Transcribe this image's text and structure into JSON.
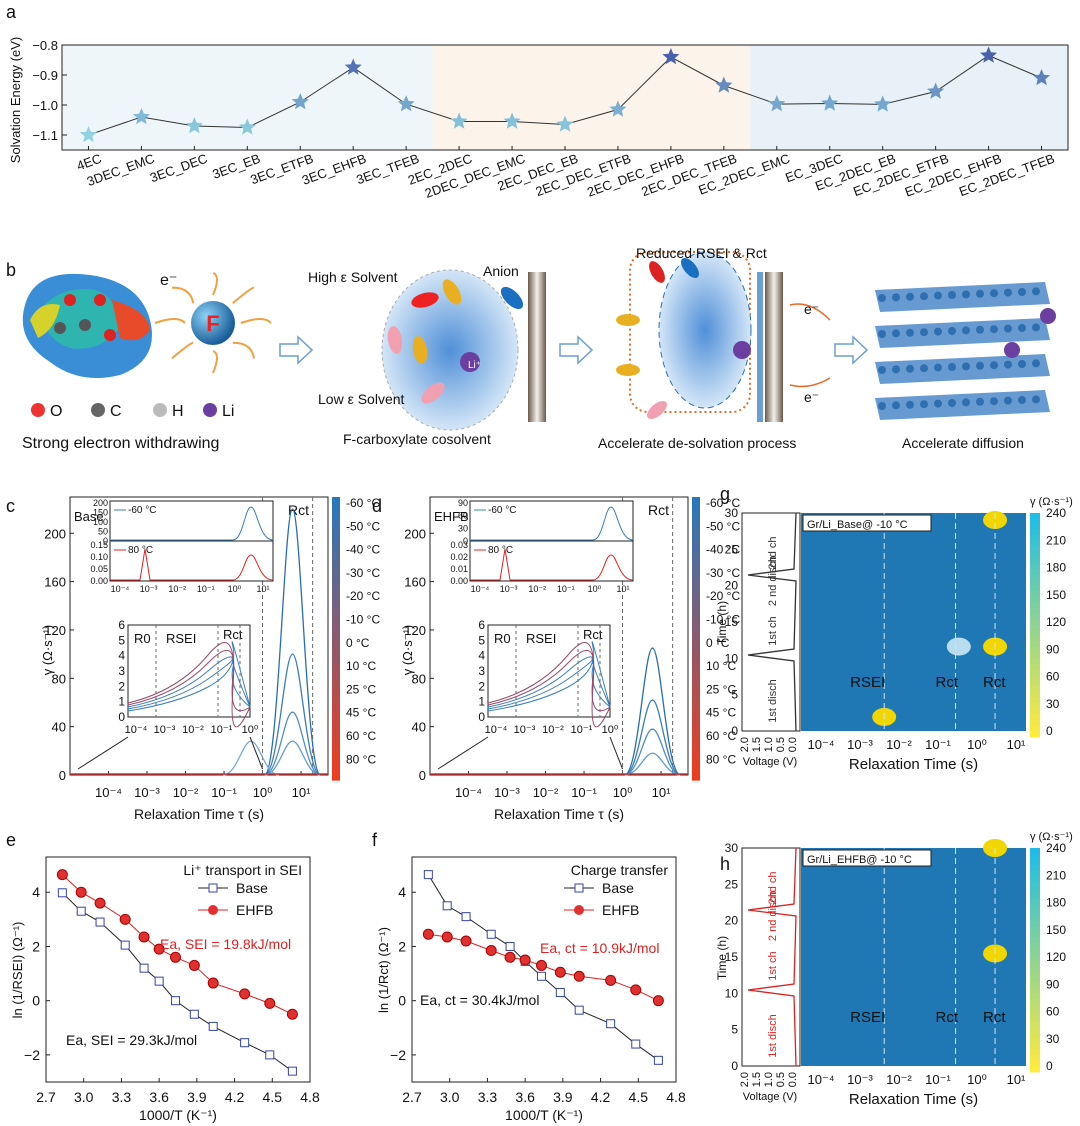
{
  "panel_letters": [
    "a",
    "b",
    "c",
    "d",
    "e",
    "f",
    "g",
    "h"
  ],
  "chart_data": [
    {
      "panel": "a",
      "type": "line",
      "ylabel": "Solvation Energy (eV)",
      "ylim": [
        -1.15,
        -0.8
      ],
      "yticks": [
        -0.8,
        -0.9,
        -1.0,
        -1.1
      ],
      "categories": [
        "4EC",
        "3DEC_EMC",
        "3EC_DEC",
        "3EC_EB",
        "3EC_ETFB",
        "3EC_EHFB",
        "3EC_TFEB",
        "2EC_2DEC",
        "2DEC_DEC_EMC",
        "2EC_DEC_EB",
        "2EC_DEC_ETFB",
        "2EC_DEC_EHFB",
        "2EC_DEC_TFEB",
        "EC_2DEC_EMC",
        "EC_3DEC",
        "EC_2DEC_EB",
        "EC_2DEC_ETFB",
        "EC_2DEC_EHFB",
        "EC_2DEC_TFEB"
      ],
      "values": [
        -1.1,
        -1.04,
        -1.07,
        -1.075,
        -0.99,
        -0.875,
        -0.997,
        -1.055,
        -1.055,
        -1.065,
        -1.015,
        -0.84,
        -0.935,
        -0.997,
        -0.995,
        -0.998,
        -0.955,
        -0.835,
        -0.91
      ],
      "colors": {
        "group1": "#eef6fa",
        "group2": "#fcf3ea",
        "group3": "#e7f1f7"
      }
    },
    {
      "panel": "c",
      "type": "line",
      "label": "Base",
      "xlabel": "Relaxation Time τ (s)",
      "ylabel": "γ (Ω·s⁻¹)",
      "ylim": [
        0,
        230
      ],
      "yticks": [
        "0",
        "40",
        "80",
        "120",
        "160",
        "200"
      ],
      "xticks": [
        "10⁻⁴",
        "10⁻³",
        "10⁻²",
        "10⁻¹",
        "10⁰",
        "10¹"
      ],
      "region_label": "Rct",
      "colorbar_labels": [
        "-60 °C",
        "-50 °C",
        "-40 °C",
        "-30 °C",
        "-20 °C",
        "-10 °C",
        "0 °C",
        "10 °C",
        "25 °C",
        "45 °C",
        "60 °C",
        "80 °C"
      ],
      "peaks_main": [
        {
          "name": "-60 °C",
          "tau": 6,
          "gamma": 220
        },
        {
          "name": "-50 °C",
          "tau": 6,
          "gamma": 100
        },
        {
          "name": "-40 °C",
          "tau": 6,
          "gamma": 52
        },
        {
          "name": "-30 °C",
          "tau": 6,
          "gamma": 28
        },
        {
          "name": "-20 °C",
          "tau": 0.5,
          "gamma": 28
        }
      ],
      "inset_top": {
        "labels": [
          "-60 °C",
          "80 °C"
        ],
        "yticks_upper": [
          "0",
          "50",
          "100",
          "150",
          "200"
        ],
        "yticks_lower": [
          "0.00",
          "0.05",
          "0.10",
          "0.15"
        ],
        "xticks": [
          "10⁻⁴",
          "10⁻³",
          "10⁻²",
          "10⁻¹",
          "10⁰",
          "10¹"
        ]
      },
      "inset_low": {
        "labels": [
          "R0",
          "RSEI",
          "Rct"
        ],
        "yticks": [
          "0",
          "1",
          "2",
          "3",
          "4",
          "5",
          "6"
        ],
        "xticks": [
          "10⁻⁴",
          "10⁻³",
          "10⁻²",
          "10⁻¹",
          "10⁰"
        ]
      }
    },
    {
      "panel": "d",
      "type": "line",
      "label": "EHFB",
      "xlabel": "Relaxation Time τ (s)",
      "ylabel": "γ (Ω·s⁻¹)",
      "ylim": [
        0,
        230
      ],
      "yticks": [
        "0",
        "40",
        "80",
        "120",
        "160",
        "200"
      ],
      "xticks": [
        "10⁻⁴",
        "10⁻³",
        "10⁻²",
        "10⁻¹",
        "10⁰",
        "10¹"
      ],
      "region_label": "Rct",
      "colorbar_labels": [
        "-60 °C",
        "-50 °C",
        "-40 °C",
        "-30 °C",
        "-20 °C",
        "-10 °C",
        "0 °C",
        "10 °C",
        "25 °C",
        "45 °C",
        "60 °C",
        "80 °C"
      ],
      "peaks_main": [
        {
          "name": "-60 °C",
          "tau": 6,
          "gamma": 105
        },
        {
          "name": "-50 °C",
          "tau": 6,
          "gamma": 62
        },
        {
          "name": "-40 °C",
          "tau": 6,
          "gamma": 38
        },
        {
          "name": "-30 °C",
          "tau": 6,
          "gamma": 18
        }
      ],
      "inset_top": {
        "labels": [
          "-60 °C",
          "80 °C"
        ],
        "yticks_upper": [
          "0",
          "30",
          "60",
          "90"
        ],
        "yticks_lower": [
          "0.00",
          "0.01",
          "0.02",
          "0.03"
        ],
        "xticks": [
          "10⁻⁴",
          "10⁻³",
          "10⁻²",
          "10⁻¹",
          "10⁰",
          "10¹"
        ]
      },
      "inset_low": {
        "labels": [
          "R0",
          "RSEI",
          "Rct"
        ],
        "yticks": [
          "0",
          "1",
          "2",
          "3",
          "4",
          "5",
          "6"
        ],
        "xticks": [
          "10⁻⁴",
          "10⁻³",
          "10⁻²",
          "10⁻¹",
          "10⁰"
        ]
      }
    },
    {
      "panel": "e",
      "type": "line",
      "title": "Li⁺ transport in SEI",
      "xlabel": "1000/T (K⁻¹)",
      "ylabel": "ln (1/RSEI) (Ω⁻¹)",
      "xlim": [
        2.7,
        4.8
      ],
      "ylim": [
        -3,
        5.3
      ],
      "xticks": [
        "2.7",
        "3.0",
        "3.3",
        "3.6",
        "3.9",
        "4.2",
        "4.5",
        "4.8"
      ],
      "yticks": [
        "-2",
        "0",
        "2",
        "4"
      ],
      "series": [
        {
          "name": "Base",
          "color": "#222222",
          "x": [
            2.83,
            2.98,
            3.13,
            3.33,
            3.48,
            3.6,
            3.73,
            3.88,
            4.03,
            4.28,
            4.48,
            4.66
          ],
          "y": [
            3.98,
            3.3,
            2.9,
            2.05,
            1.2,
            0.72,
            0.0,
            -0.5,
            -0.95,
            -1.55,
            -2.0,
            -2.6
          ]
        },
        {
          "name": "EHFB",
          "color": "#dd2222",
          "x": [
            2.83,
            2.98,
            3.13,
            3.33,
            3.48,
            3.6,
            3.73,
            3.88,
            4.03,
            4.28,
            4.48,
            4.66
          ],
          "y": [
            4.65,
            4.0,
            3.6,
            3.0,
            2.35,
            1.9,
            1.6,
            1.3,
            0.65,
            0.25,
            -0.1,
            -0.5
          ]
        }
      ],
      "annotations": [
        "Ea, SEI = 19.8kJ/mol",
        "Ea, SEI = 29.3kJ/mol"
      ]
    },
    {
      "panel": "f",
      "type": "line",
      "title": "Charge transfer",
      "xlabel": "1000/T (K⁻¹)",
      "ylabel": "ln (1/Rct) (Ω⁻¹)",
      "xlim": [
        2.7,
        4.8
      ],
      "ylim": [
        -3,
        5.3
      ],
      "xticks": [
        "2.7",
        "3.0",
        "3.3",
        "3.6",
        "3.9",
        "4.2",
        "4.5",
        "4.8"
      ],
      "yticks": [
        "-2",
        "0",
        "2",
        "4"
      ],
      "series": [
        {
          "name": "Base",
          "color": "#222222",
          "x": [
            2.83,
            2.98,
            3.13,
            3.33,
            3.48,
            3.6,
            3.73,
            3.88,
            4.03,
            4.28,
            4.48,
            4.66
          ],
          "y": [
            4.65,
            3.5,
            3.1,
            2.45,
            2.0,
            1.45,
            0.9,
            0.3,
            -0.35,
            -0.85,
            -1.6,
            -2.2
          ]
        },
        {
          "name": "EHFB",
          "color": "#dd2222",
          "x": [
            2.83,
            2.98,
            3.13,
            3.33,
            3.48,
            3.6,
            3.73,
            3.88,
            4.03,
            4.28,
            4.48,
            4.66
          ],
          "y": [
            2.45,
            2.35,
            2.2,
            1.85,
            1.6,
            1.5,
            1.3,
            1.05,
            0.9,
            0.75,
            0.4,
            0.0
          ]
        }
      ],
      "annotations": [
        "Ea, ct = 10.9kJ/mol",
        "Ea, ct = 30.4kJ/mol"
      ]
    },
    {
      "panel": "g",
      "type": "heatmap",
      "title": "Gr/Li_Base@ -10 °C",
      "xlabel": "Relaxation Time (s)",
      "ylabel": "Time (h)",
      "voltage_label": "Voltage (V)",
      "yticks": [
        "0",
        "5",
        "10",
        "15",
        "20",
        "25",
        "30"
      ],
      "voltage_ticks": [
        "2.0",
        "1.5",
        "1.0",
        "0.5",
        "0.0"
      ],
      "xticks": [
        "10⁻⁴",
        "10⁻³",
        "10⁻²",
        "10⁻¹",
        "10⁰",
        "10¹"
      ],
      "step_labels": [
        "1st disch",
        "1st ch",
        "2 nd disch",
        "2nd ch"
      ],
      "region_labels": [
        "RSEI",
        "Rct",
        "Rct"
      ],
      "colorbar_title": "γ (Ω·s⁻¹)",
      "colorbar_ticks": [
        "0",
        "30",
        "60",
        "90",
        "120",
        "150",
        "180",
        "210",
        "240"
      ],
      "hotspots": [
        {
          "label": "RSEI peak",
          "tau": 0.003,
          "time": 2,
          "gamma": 240
        },
        {
          "label": "Rct peak 2",
          "tau": 6,
          "time": 12,
          "gamma": 240
        },
        {
          "label": "Rct peak",
          "tau": 0.5,
          "time": 12,
          "gamma": 140
        },
        {
          "label": "Rct peak 3",
          "tau": 6,
          "time": 30,
          "gamma": 240
        }
      ]
    },
    {
      "panel": "h",
      "type": "heatmap",
      "title": "Gr/Li_EHFB@ -10 °C",
      "xlabel": "Relaxation Time (s)",
      "ylabel": "Time (h)",
      "voltage_label": "Voltage (V)",
      "yticks": [
        "0",
        "5",
        "10",
        "15",
        "20",
        "25",
        "30"
      ],
      "voltage_ticks": [
        "2.0",
        "1.5",
        "1.0",
        "0.5",
        "0.0"
      ],
      "xticks": [
        "10⁻⁴",
        "10⁻³",
        "10⁻²",
        "10⁻¹",
        "10⁰",
        "10¹"
      ],
      "step_labels": [
        "1st disch",
        "1st ch",
        "2 nd disch",
        "2nd ch"
      ],
      "region_labels": [
        "RSEI",
        "Rct",
        "Rct"
      ],
      "colorbar_title": "γ (Ω·s⁻¹)",
      "colorbar_ticks": [
        "0",
        "30",
        "60",
        "90",
        "120",
        "150",
        "180",
        "210",
        "240"
      ],
      "hotspots": [
        {
          "label": "Rct peak",
          "tau": 6,
          "time": 16,
          "gamma": 200
        },
        {
          "label": "Rct peak 2",
          "tau": 6,
          "time": 31,
          "gamma": 240
        }
      ]
    }
  ],
  "schematic": {
    "legend": [
      "O",
      "C",
      "H",
      "Li"
    ],
    "captions": [
      "Strong electron withdrawing",
      "F-carboxylate cosolvent",
      "Accelerate de-solvation process",
      "Accelerate diffusion"
    ],
    "labels": [
      "High ε Solvent",
      "Anion",
      "Low ε Solvent",
      "e⁻",
      "e⁻",
      "e⁻"
    ],
    "reduced": "Reduced RSEI & Rct",
    "fluorine": "F",
    "lithium": "Li⁺"
  }
}
